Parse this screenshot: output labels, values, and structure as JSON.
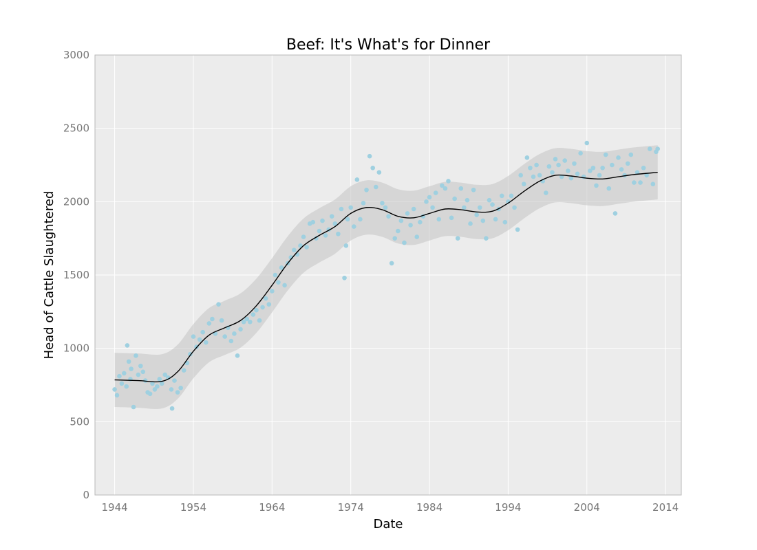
{
  "colors": {
    "plot_background": "#ececec",
    "grid": "#ffffff",
    "frame": "#b8b8b8",
    "points": "#9fd0e0",
    "trend_line": "#000000",
    "band_fill": "#c8c8c8"
  },
  "chart_data": {
    "type": "scatter",
    "title": "Beef: It's What's for Dinner",
    "xlabel": "Date",
    "ylabel": "Head of Cattle Slaughtered",
    "xlim": [
      1941.5,
      2016
    ],
    "ylim": [
      0,
      3000
    ],
    "grid": true,
    "x_ticks": [
      1944,
      1954,
      1964,
      1974,
      1984,
      1994,
      2004,
      2014
    ],
    "y_ticks": [
      0,
      500,
      1000,
      1500,
      2000,
      2500,
      3000
    ],
    "series": [
      {
        "name": "smoothed trend",
        "type": "line",
        "x": [
          1944,
          1947,
          1950,
          1952,
          1954,
          1956,
          1958,
          1960,
          1962,
          1964,
          1966,
          1968,
          1970,
          1972,
          1974,
          1976,
          1978,
          1980,
          1982,
          1984,
          1986,
          1988,
          1990,
          1992,
          1994,
          1996,
          1998,
          2000,
          2002,
          2004,
          2006,
          2008,
          2010,
          2013
        ],
        "y": [
          785,
          780,
          775,
          840,
          980,
          1090,
          1140,
          1190,
          1290,
          1430,
          1580,
          1700,
          1770,
          1830,
          1920,
          1960,
          1945,
          1900,
          1890,
          1920,
          1950,
          1945,
          1930,
          1935,
          1990,
          2070,
          2140,
          2180,
          2175,
          2160,
          2155,
          2170,
          2185,
          2200
        ],
        "band_halfwidth": 185
      },
      {
        "name": "observations",
        "type": "scatter",
        "x": [
          1944.0,
          1944.3,
          1944.6,
          1944.9,
          1945.2,
          1945.5,
          1945.6,
          1945.8,
          1946.0,
          1946.1,
          1946.4,
          1946.7,
          1947.0,
          1947.3,
          1947.6,
          1947.9,
          1948.2,
          1948.5,
          1948.8,
          1949.1,
          1949.4,
          1949.7,
          1950.0,
          1950.4,
          1950.8,
          1951.2,
          1951.3,
          1951.6,
          1952.0,
          1952.4,
          1952.8,
          1953.2,
          1953.6,
          1954.0,
          1954.4,
          1954.8,
          1955.2,
          1955.6,
          1956.0,
          1956.4,
          1956.8,
          1957.2,
          1957.6,
          1958.0,
          1958.4,
          1958.8,
          1959.2,
          1959.6,
          1960.0,
          1960.4,
          1960.8,
          1961.2,
          1961.6,
          1962.0,
          1962.4,
          1962.8,
          1963.2,
          1963.6,
          1964.0,
          1964.4,
          1964.8,
          1965.2,
          1965.6,
          1966.0,
          1966.4,
          1966.8,
          1967.2,
          1967.6,
          1968.0,
          1968.4,
          1968.8,
          1969.2,
          1969.6,
          1970.0,
          1970.4,
          1970.8,
          1971.2,
          1971.6,
          1972.0,
          1972.4,
          1972.8,
          1973.2,
          1973.4,
          1973.6,
          1974.0,
          1974.4,
          1974.8,
          1975.2,
          1975.6,
          1976.0,
          1976.4,
          1976.8,
          1977.2,
          1977.6,
          1978.0,
          1978.4,
          1978.8,
          1979.2,
          1979.6,
          1980.0,
          1980.4,
          1980.8,
          1981.2,
          1981.6,
          1982.0,
          1982.4,
          1982.8,
          1983.2,
          1983.6,
          1984.0,
          1984.4,
          1984.8,
          1985.2,
          1985.6,
          1986.0,
          1986.4,
          1986.8,
          1987.2,
          1987.6,
          1988.0,
          1988.4,
          1988.8,
          1989.2,
          1989.6,
          1990.0,
          1990.4,
          1990.8,
          1991.2,
          1991.6,
          1992.0,
          1992.4,
          1992.8,
          1993.2,
          1993.6,
          1994.0,
          1994.4,
          1994.8,
          1995.2,
          1995.6,
          1996.0,
          1996.4,
          1996.8,
          1997.2,
          1997.6,
          1998.0,
          1998.4,
          1998.8,
          1999.2,
          1999.6,
          2000.0,
          2000.4,
          2000.8,
          2001.2,
          2001.6,
          2002.0,
          2002.4,
          2002.8,
          2003.2,
          2003.6,
          2004.0,
          2004.4,
          2004.8,
          2005.2,
          2005.6,
          2006.0,
          2006.4,
          2006.8,
          2007.2,
          2007.6,
          2008.0,
          2008.4,
          2008.8,
          2009.2,
          2009.6,
          2010.0,
          2010.4,
          2010.8,
          2011.2,
          2011.6,
          2012.0,
          2012.4,
          2012.8,
          2013.0
        ],
        "y": [
          720,
          680,
          810,
          760,
          830,
          740,
          1020,
          910,
          790,
          860,
          600,
          950,
          820,
          880,
          840,
          780,
          700,
          690,
          760,
          720,
          740,
          790,
          760,
          820,
          800,
          720,
          590,
          780,
          700,
          730,
          850,
          900,
          960,
          1080,
          1010,
          1060,
          1110,
          1040,
          1170,
          1200,
          1100,
          1300,
          1190,
          1080,
          1140,
          1050,
          1100,
          950,
          1130,
          1180,
          1200,
          1180,
          1230,
          1260,
          1190,
          1280,
          1340,
          1300,
          1390,
          1500,
          1450,
          1550,
          1430,
          1580,
          1620,
          1670,
          1640,
          1700,
          1760,
          1690,
          1850,
          1860,
          1750,
          1800,
          1870,
          1770,
          1810,
          1900,
          1850,
          1780,
          1950,
          1480,
          1700,
          1880,
          1960,
          1830,
          2150,
          1880,
          1990,
          2080,
          2310,
          2230,
          2100,
          2200,
          1990,
          1960,
          1900,
          1580,
          1750,
          1800,
          1870,
          1720,
          1920,
          1840,
          1950,
          1760,
          1860,
          1900,
          2000,
          2030,
          1960,
          2060,
          1880,
          2110,
          2090,
          2140,
          1890,
          2020,
          1750,
          2090,
          1960,
          2010,
          1850,
          2080,
          1910,
          1960,
          1870,
          1750,
          2010,
          1980,
          1880,
          1950,
          2040,
          1860,
          2000,
          2040,
          1960,
          1810,
          2180,
          2120,
          2300,
          2230,
          2170,
          2250,
          2180,
          2140,
          2060,
          2240,
          2200,
          2290,
          2250,
          2170,
          2280,
          2210,
          2160,
          2260,
          2190,
          2330,
          2170,
          2400,
          2210,
          2230,
          2110,
          2180,
          2230,
          2320,
          2090,
          2250,
          1920,
          2300,
          2220,
          2180,
          2260,
          2320,
          2130,
          2200,
          2130,
          2230,
          2180,
          2360,
          2120,
          2340,
          2360
        ]
      }
    ]
  }
}
